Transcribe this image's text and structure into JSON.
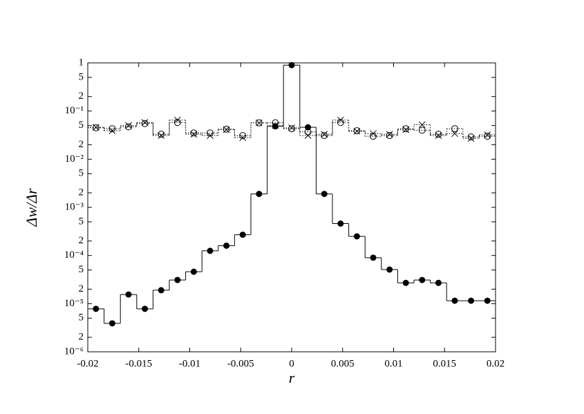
{
  "chart_data": {
    "type": "step-scatter",
    "x_label": "r",
    "y_label": "Δw/Δr",
    "x": [
      -0.0192,
      -0.0176,
      -0.016,
      -0.0144,
      -0.0128,
      -0.0112,
      -0.0096,
      -0.008,
      -0.0064,
      -0.0048,
      -0.0032,
      -0.0016,
      0,
      0.0016,
      0.0032,
      0.0048,
      0.0064,
      0.008,
      0.0096,
      0.0112,
      0.0128,
      0.0144,
      0.016,
      0.0176,
      0.0192
    ],
    "series": [
      {
        "color": "#000000",
        "marker": "filled-circle",
        "line_style": "solid",
        "values": [
          7.8e-06,
          3.9e-06,
          1.55e-05,
          7.8e-06,
          1.9e-05,
          3.1e-05,
          4.6e-05,
          0.000125,
          0.00016,
          0.00027,
          0.0019,
          0.048,
          0.9,
          0.046,
          0.0019,
          0.00046,
          0.00025,
          9e-05,
          5.1e-05,
          2.7e-05,
          3.1e-05,
          2.7e-05,
          1.15e-05,
          1.15e-05,
          1.15e-05
        ]
      },
      {
        "color": "#000000",
        "marker": "open-circle",
        "line_style": "dotted",
        "values": [
          0.045,
          0.043,
          0.047,
          0.055,
          0.033,
          0.058,
          0.035,
          0.035,
          0.042,
          0.031,
          0.057,
          0.057,
          0.043,
          0.037,
          0.031,
          0.058,
          0.039,
          0.03,
          0.031,
          0.043,
          0.04,
          0.033,
          0.043,
          0.029,
          0.03
        ]
      },
      {
        "color": "#000000",
        "marker": "cross",
        "line_style": "dotted",
        "values": [
          0.046,
          0.039,
          0.05,
          0.058,
          0.031,
          0.065,
          0.033,
          0.031,
          0.041,
          0.028,
          0.057,
          0.05,
          0.045,
          0.031,
          0.033,
          0.065,
          0.038,
          0.034,
          0.033,
          0.041,
          0.052,
          0.031,
          0.034,
          0.027,
          0.032
        ]
      }
    ],
    "xlim": [
      -0.02,
      0.02
    ],
    "xticks": [
      -0.02,
      -0.015,
      -0.01,
      -0.005,
      0,
      0.005,
      0.01,
      0.015,
      0.02
    ],
    "ylim": [
      1e-06,
      1
    ],
    "y_scale": "log",
    "yticks": [
      {
        "value": 1e-06,
        "label": "10⁻⁶"
      },
      {
        "value": 2e-06,
        "label": "2"
      },
      {
        "value": 5e-06,
        "label": "5"
      },
      {
        "value": 1e-05,
        "label": "10⁻⁵"
      },
      {
        "value": 2e-05,
        "label": "2"
      },
      {
        "value": 5e-05,
        "label": "5"
      },
      {
        "value": 0.0001,
        "label": "10⁻⁴"
      },
      {
        "value": 0.0002,
        "label": "2"
      },
      {
        "value": 0.0005,
        "label": "5"
      },
      {
        "value": 0.001,
        "label": "10⁻³"
      },
      {
        "value": 0.002,
        "label": "2"
      },
      {
        "value": 0.005,
        "label": "5"
      },
      {
        "value": 0.01,
        "label": "10⁻²"
      },
      {
        "value": 0.02,
        "label": "2"
      },
      {
        "value": 0.05,
        "label": "5"
      },
      {
        "value": 0.1,
        "label": "10⁻¹"
      },
      {
        "value": 0.2,
        "label": "2"
      },
      {
        "value": 0.5,
        "label": "5"
      },
      1
    ]
  }
}
